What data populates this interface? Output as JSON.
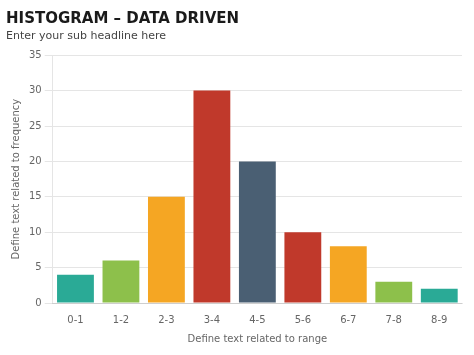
{
  "chart_data": {
    "type": "bar",
    "title": "HISTOGRAM – DATA DRIVEN",
    "subtitle": "Enter your sub headline here",
    "categories": [
      "0-1",
      "1-2",
      "2-3",
      "3-4",
      "4-5",
      "5-6",
      "6-7",
      "7-8",
      "8-9"
    ],
    "values": [
      4,
      6,
      15,
      30,
      20,
      10,
      8,
      3,
      2
    ],
    "colors": [
      "#2aaa96",
      "#8dc04b",
      "#f5a623",
      "#c0392b",
      "#4a5f73",
      "#c0392b",
      "#f5a623",
      "#8dc04b",
      "#2aaa96"
    ],
    "xlabel": "Define text related to range",
    "ylabel": "Define text related to frequency",
    "ylim": [
      0,
      35
    ],
    "yticks": [
      0,
      5,
      10,
      15,
      20,
      25,
      30,
      35
    ],
    "grid": true
  }
}
